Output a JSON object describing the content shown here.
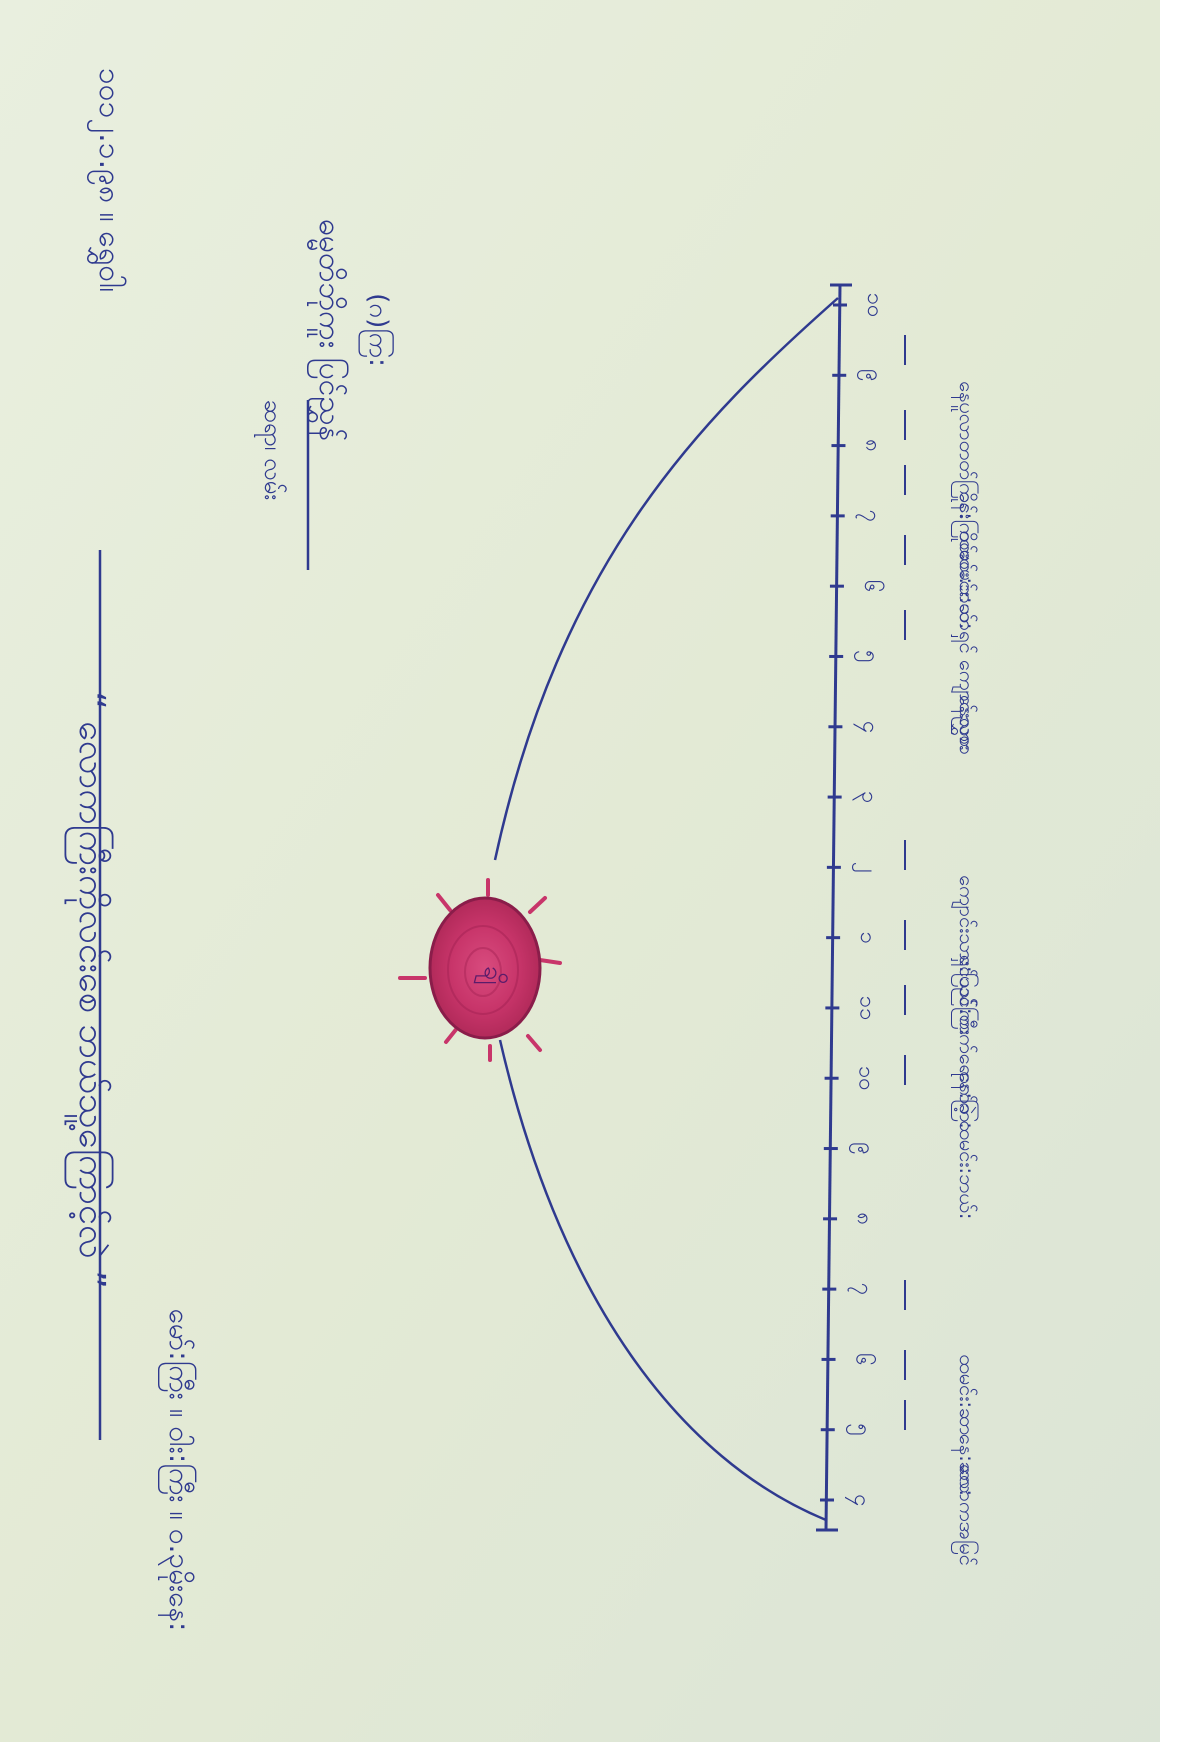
{
  "photo": {
    "description_colors": {
      "paper": "#e6ecd9",
      "ink": "#2f3a8f",
      "sun_fill": "#c8356a",
      "sun_ring": "#8a1d4a"
    }
  },
  "handwriting": {
    "title": "“ လောကကြီးကိုလင်းစေ ဘယ်သူ့ကြောင့်လဲ ”",
    "date": "၁၀၁၂.၁.၉၈ ။ ရွှေ၀ါ၊",
    "author_lines": [
      "ဓမ္မတိဘိုကူး ပြင်ညွှန်",
      "(ဂ)ကြ:",
      "ဆရာ၊ လမ်း"
    ],
    "bottom_line": "မော်:ကြီး ။ ဝါး:ကြီး ။ ၀.၃မိုးနေ:",
    "sun_label": "ချိ"
  },
  "scale": {
    "ticks": [
      "၁၀",
      "၉",
      "၈",
      "၇",
      "၆",
      "၅",
      "၄",
      "၃",
      "၂",
      "၁",
      "၁၁",
      "၁၀",
      "၉",
      "၈",
      "၇",
      "၆",
      "၅",
      "၄"
    ]
  },
  "annotations": [
    "နေပူလာတတ်ကြိုင်း",
    "နေ:ကြိုင်း",
    "ထမင်း:ဘယ်:",
    "ထမင်း:ဆာရှင် ကျောင်းလွှား",
    "နေညစာ",
    "ကျောင်းသား:ပြည်ကြီး",
    "ရှင်သင်:တက်ရောက်ခဲ့",
    "နေ:ကြ:",
    "ထမင်း:ဘယ်:",
    "ထမင်း:ဆာ",
    "နေ:ဆာ:",
    "လောကအမြင်"
  ]
}
